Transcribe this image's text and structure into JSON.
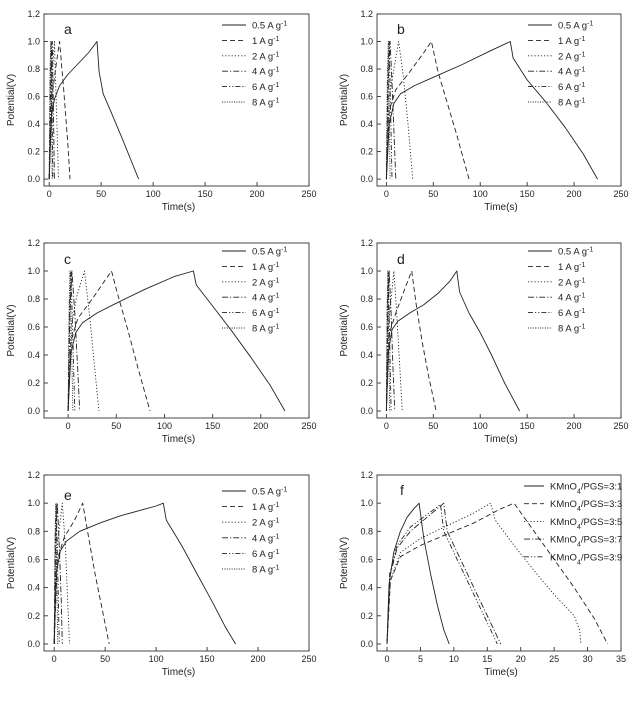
{
  "figure": {
    "panel_letters": [
      "a",
      "b",
      "c",
      "d",
      "e",
      "f"
    ]
  },
  "chart_data": [
    {
      "type": "line",
      "panel": "a",
      "xlabel": "Time(s)",
      "ylabel": "Potential(V)",
      "xlim": [
        -5,
        250
      ],
      "ylim": [
        -0.05,
        1.2
      ],
      "xticks": [
        0,
        50,
        100,
        150,
        200,
        250
      ],
      "yticks": [
        0.0,
        0.2,
        0.4,
        0.6,
        0.8,
        1.0,
        1.2
      ],
      "series": [
        {
          "name": "0.5 A g-1",
          "style": "solid",
          "x": [
            0,
            2,
            5,
            10,
            18,
            28,
            38,
            46,
            48,
            52,
            60,
            70,
            78,
            86
          ],
          "y": [
            0.0,
            0.45,
            0.58,
            0.68,
            0.76,
            0.84,
            0.92,
            1.0,
            0.78,
            0.62,
            0.48,
            0.3,
            0.15,
            0.0
          ]
        },
        {
          "name": "1 A g-1",
          "style": "dash",
          "x": [
            0,
            3,
            7,
            10,
            14,
            18,
            20
          ],
          "y": [
            0.0,
            0.62,
            0.85,
            1.0,
            0.65,
            0.25,
            0.0
          ]
        },
        {
          "name": "2 A g-1",
          "style": "dot",
          "x": [
            0,
            3,
            5,
            7,
            9
          ],
          "y": [
            0.0,
            0.75,
            1.0,
            0.5,
            0.0
          ]
        },
        {
          "name": "4 A g-1",
          "style": "dashdot",
          "x": [
            0,
            2,
            3,
            4,
            5
          ],
          "y": [
            0.0,
            0.8,
            1.0,
            0.5,
            0.0
          ]
        },
        {
          "name": "6 A g-1",
          "style": "dashdotdot",
          "x": [
            0,
            1.2,
            2,
            2.8,
            3.5
          ],
          "y": [
            0.0,
            0.8,
            1.0,
            0.5,
            0.0
          ]
        },
        {
          "name": "8 A g-1",
          "style": "shortdot",
          "x": [
            0,
            0.8,
            1.5,
            2.2,
            2.8
          ],
          "y": [
            0.0,
            0.8,
            1.0,
            0.5,
            0.0
          ]
        }
      ]
    },
    {
      "type": "line",
      "panel": "b",
      "xlabel": "Time(s)",
      "ylabel": "Potential(V)",
      "xlim": [
        -10,
        250
      ],
      "ylim": [
        -0.05,
        1.2
      ],
      "xticks": [
        0,
        50,
        100,
        150,
        200,
        250
      ],
      "yticks": [
        0.0,
        0.2,
        0.4,
        0.6,
        0.8,
        1.0,
        1.2
      ],
      "series": [
        {
          "name": "0.5 A g-1",
          "style": "solid",
          "x": [
            0,
            3,
            8,
            15,
            30,
            50,
            80,
            110,
            132,
            135,
            150,
            170,
            190,
            210,
            225
          ],
          "y": [
            0.0,
            0.4,
            0.55,
            0.62,
            0.68,
            0.74,
            0.83,
            0.93,
            1.0,
            0.88,
            0.72,
            0.56,
            0.38,
            0.18,
            0.0
          ]
        },
        {
          "name": "1 A g-1",
          "style": "dash",
          "x": [
            0,
            3,
            10,
            25,
            40,
            48,
            55,
            65,
            75,
            88
          ],
          "y": [
            0.0,
            0.5,
            0.65,
            0.78,
            0.92,
            1.0,
            0.78,
            0.55,
            0.32,
            0.0
          ]
        },
        {
          "name": "2 A g-1",
          "style": "dot",
          "x": [
            0,
            3,
            8,
            13,
            18,
            23,
            28
          ],
          "y": [
            0.0,
            0.6,
            0.8,
            1.0,
            0.75,
            0.4,
            0.0
          ]
        },
        {
          "name": "4 A g-1",
          "style": "dashdot",
          "x": [
            0,
            2,
            4,
            6,
            8,
            10
          ],
          "y": [
            0.0,
            0.7,
            1.0,
            0.7,
            0.35,
            0.0
          ]
        },
        {
          "name": "6 A g-1",
          "style": "dashdotdot",
          "x": [
            0,
            1.5,
            3,
            4.5,
            6
          ],
          "y": [
            0.0,
            0.75,
            1.0,
            0.5,
            0.0
          ]
        },
        {
          "name": "8 A g-1",
          "style": "shortdot",
          "x": [
            0,
            1,
            2,
            3,
            4
          ],
          "y": [
            0.0,
            0.75,
            1.0,
            0.5,
            0.0
          ]
        }
      ]
    },
    {
      "type": "line",
      "panel": "c",
      "xlabel": "Time(s)",
      "ylabel": "Potential(V)",
      "xlim": [
        -25,
        250
      ],
      "ylim": [
        -0.05,
        1.2
      ],
      "xticks": [
        0,
        50,
        100,
        150,
        200,
        250
      ],
      "yticks": [
        0.0,
        0.2,
        0.4,
        0.6,
        0.8,
        1.0,
        1.2
      ],
      "series": [
        {
          "name": "0.5 A g-1",
          "style": "solid",
          "x": [
            0,
            3,
            8,
            15,
            30,
            50,
            80,
            110,
            130,
            133,
            150,
            170,
            190,
            210,
            225
          ],
          "y": [
            0.0,
            0.42,
            0.56,
            0.63,
            0.7,
            0.77,
            0.87,
            0.96,
            1.0,
            0.9,
            0.75,
            0.57,
            0.38,
            0.18,
            0.0
          ]
        },
        {
          "name": "1 A g-1",
          "style": "dash",
          "x": [
            0,
            3,
            10,
            25,
            38,
            45,
            52,
            62,
            72,
            85
          ],
          "y": [
            0.0,
            0.5,
            0.66,
            0.8,
            0.93,
            1.0,
            0.82,
            0.58,
            0.32,
            0.0
          ]
        },
        {
          "name": "2 A g-1",
          "style": "dot",
          "x": [
            0,
            3,
            9,
            17,
            22,
            27,
            32
          ],
          "y": [
            0.0,
            0.6,
            0.82,
            1.0,
            0.7,
            0.35,
            0.0
          ]
        },
        {
          "name": "4 A g-1",
          "style": "dashdot",
          "x": [
            0,
            2,
            4,
            7,
            10,
            12
          ],
          "y": [
            0.0,
            0.72,
            1.0,
            0.7,
            0.3,
            0.0
          ]
        },
        {
          "name": "6 A g-1",
          "style": "dashdotdot",
          "x": [
            0,
            1.5,
            3,
            5,
            7
          ],
          "y": [
            0.0,
            0.75,
            1.0,
            0.5,
            0.0
          ]
        },
        {
          "name": "8 A g-1",
          "style": "shortdot",
          "x": [
            0,
            1,
            2,
            3.5,
            5
          ],
          "y": [
            0.0,
            0.75,
            1.0,
            0.5,
            0.0
          ]
        }
      ]
    },
    {
      "type": "line",
      "panel": "d",
      "xlabel": "Time(s)",
      "ylabel": "Potential(V)",
      "xlim": [
        -10,
        250
      ],
      "ylim": [
        -0.05,
        1.2
      ],
      "xticks": [
        0,
        50,
        100,
        150,
        200,
        250
      ],
      "yticks": [
        0.0,
        0.2,
        0.4,
        0.6,
        0.8,
        1.0,
        1.2
      ],
      "series": [
        {
          "name": "0.5 A g-1",
          "style": "solid",
          "x": [
            0,
            2,
            6,
            12,
            25,
            40,
            55,
            68,
            75,
            78,
            88,
            100,
            112,
            126,
            142
          ],
          "y": [
            0.0,
            0.42,
            0.58,
            0.64,
            0.7,
            0.76,
            0.84,
            0.93,
            1.0,
            0.85,
            0.7,
            0.56,
            0.4,
            0.2,
            0.0
          ]
        },
        {
          "name": "1 A g-1",
          "style": "dash",
          "x": [
            0,
            3,
            10,
            20,
            27,
            32,
            38,
            45,
            53
          ],
          "y": [
            0.0,
            0.55,
            0.7,
            0.88,
            1.0,
            0.75,
            0.5,
            0.25,
            0.0
          ]
        },
        {
          "name": "2 A g-1",
          "style": "dot",
          "x": [
            0,
            2,
            5,
            8,
            11,
            14,
            17
          ],
          "y": [
            0.0,
            0.6,
            0.8,
            1.0,
            0.7,
            0.35,
            0.0
          ]
        },
        {
          "name": "4 A g-1",
          "style": "dashdot",
          "x": [
            0,
            1.5,
            3,
            5,
            7,
            9
          ],
          "y": [
            0.0,
            0.7,
            1.0,
            0.7,
            0.3,
            0.0
          ]
        },
        {
          "name": "6 A g-1",
          "style": "dashdotdot",
          "x": [
            0,
            1,
            2,
            3.5,
            5
          ],
          "y": [
            0.0,
            0.75,
            1.0,
            0.5,
            0.0
          ]
        },
        {
          "name": "8 A g-1",
          "style": "shortdot",
          "x": [
            0,
            0.8,
            1.6,
            2.5,
            3.5
          ],
          "y": [
            0.0,
            0.75,
            1.0,
            0.5,
            0.0
          ]
        }
      ]
    },
    {
      "type": "line",
      "panel": "e",
      "xlabel": "Time(s)",
      "ylabel": "Potential(V)",
      "xlim": [
        -10,
        250
      ],
      "ylim": [
        -0.05,
        1.2
      ],
      "xticks": [
        0,
        50,
        100,
        150,
        200,
        250
      ],
      "yticks": [
        0.0,
        0.2,
        0.4,
        0.6,
        0.8,
        1.0,
        1.2
      ],
      "series": [
        {
          "name": "0.5 A g-1",
          "style": "solid",
          "x": [
            0,
            2,
            6,
            12,
            25,
            45,
            65,
            85,
            100,
            107,
            110,
            125,
            140,
            155,
            168,
            178
          ],
          "y": [
            0.0,
            0.5,
            0.66,
            0.73,
            0.8,
            0.86,
            0.91,
            0.95,
            0.98,
            1.0,
            0.88,
            0.7,
            0.5,
            0.3,
            0.12,
            0.0
          ]
        },
        {
          "name": "1 A g-1",
          "style": "dash",
          "x": [
            0,
            3,
            10,
            20,
            28,
            34,
            40,
            47,
            54
          ],
          "y": [
            0.0,
            0.6,
            0.76,
            0.88,
            1.0,
            0.75,
            0.5,
            0.25,
            0.0
          ]
        },
        {
          "name": "2 A g-1",
          "style": "dot",
          "x": [
            0,
            2,
            5,
            8,
            11,
            13,
            15
          ],
          "y": [
            0.0,
            0.6,
            0.82,
            1.0,
            0.7,
            0.35,
            0.0
          ]
        },
        {
          "name": "4 A g-1",
          "style": "dashdot",
          "x": [
            0,
            1.5,
            3,
            5,
            7,
            8
          ],
          "y": [
            0.0,
            0.7,
            1.0,
            0.7,
            0.3,
            0.0
          ]
        },
        {
          "name": "6 A g-1",
          "style": "dashdotdot",
          "x": [
            0,
            1,
            2,
            3.5,
            5
          ],
          "y": [
            0.0,
            0.75,
            1.0,
            0.5,
            0.0
          ]
        },
        {
          "name": "8 A g-1",
          "style": "shortdot",
          "x": [
            0,
            0.8,
            1.6,
            2.5,
            3.5
          ],
          "y": [
            0.0,
            0.75,
            1.0,
            0.5,
            0.0
          ]
        }
      ]
    },
    {
      "type": "line",
      "panel": "f",
      "xlabel": "Time(s)",
      "ylabel": "Potential(V)",
      "xlim": [
        -1.5,
        35
      ],
      "ylim": [
        -0.05,
        1.2
      ],
      "xticks": [
        0,
        5,
        10,
        15,
        20,
        25,
        30,
        35
      ],
      "yticks": [
        0.0,
        0.2,
        0.4,
        0.6,
        0.8,
        1.0,
        1.2
      ],
      "series": [
        {
          "name": "KMnO4/PGS=3:1",
          "style": "solid",
          "x": [
            0,
            0.3,
            1,
            2,
            3,
            4,
            4.8,
            5.5,
            6.5,
            7.5,
            8.5,
            9.3
          ],
          "y": [
            0.0,
            0.42,
            0.65,
            0.8,
            0.9,
            0.96,
            1.0,
            0.75,
            0.5,
            0.28,
            0.1,
            0.0
          ]
        },
        {
          "name": "KMnO4/PGS=3:3",
          "style": "dash",
          "x": [
            0,
            0.5,
            2,
            5,
            9,
            13,
            17,
            19,
            22,
            25,
            28,
            31,
            33
          ],
          "y": [
            0.0,
            0.45,
            0.62,
            0.7,
            0.78,
            0.86,
            0.96,
            1.0,
            0.8,
            0.6,
            0.4,
            0.18,
            0.0
          ]
        },
        {
          "name": "KMnO4/PGS=3:5",
          "style": "dot",
          "x": [
            0,
            0.5,
            2,
            5,
            9,
            13,
            15.5,
            16.2,
            19,
            22,
            25,
            28,
            28.8,
            29
          ],
          "y": [
            0.0,
            0.45,
            0.65,
            0.75,
            0.84,
            0.93,
            1.0,
            0.88,
            0.7,
            0.52,
            0.35,
            0.2,
            0.1,
            0.0
          ]
        },
        {
          "name": "KMnO4/PGS=3:7",
          "style": "dashdot",
          "x": [
            0,
            0.4,
            1.5,
            3.5,
            6,
            8.5,
            9,
            11,
            13,
            15,
            17
          ],
          "y": [
            0.0,
            0.48,
            0.68,
            0.8,
            0.9,
            1.0,
            0.8,
            0.6,
            0.4,
            0.2,
            0.0
          ]
        },
        {
          "name": "KMnO4/PGS=3:9",
          "style": "dashdotdot",
          "x": [
            0,
            0.4,
            1.5,
            3.5,
            6,
            8,
            8.5,
            10.5,
            12.5,
            14.5,
            16.5
          ],
          "y": [
            0.0,
            0.5,
            0.7,
            0.83,
            0.92,
            0.99,
            0.8,
            0.6,
            0.4,
            0.2,
            0.0
          ]
        }
      ]
    }
  ]
}
